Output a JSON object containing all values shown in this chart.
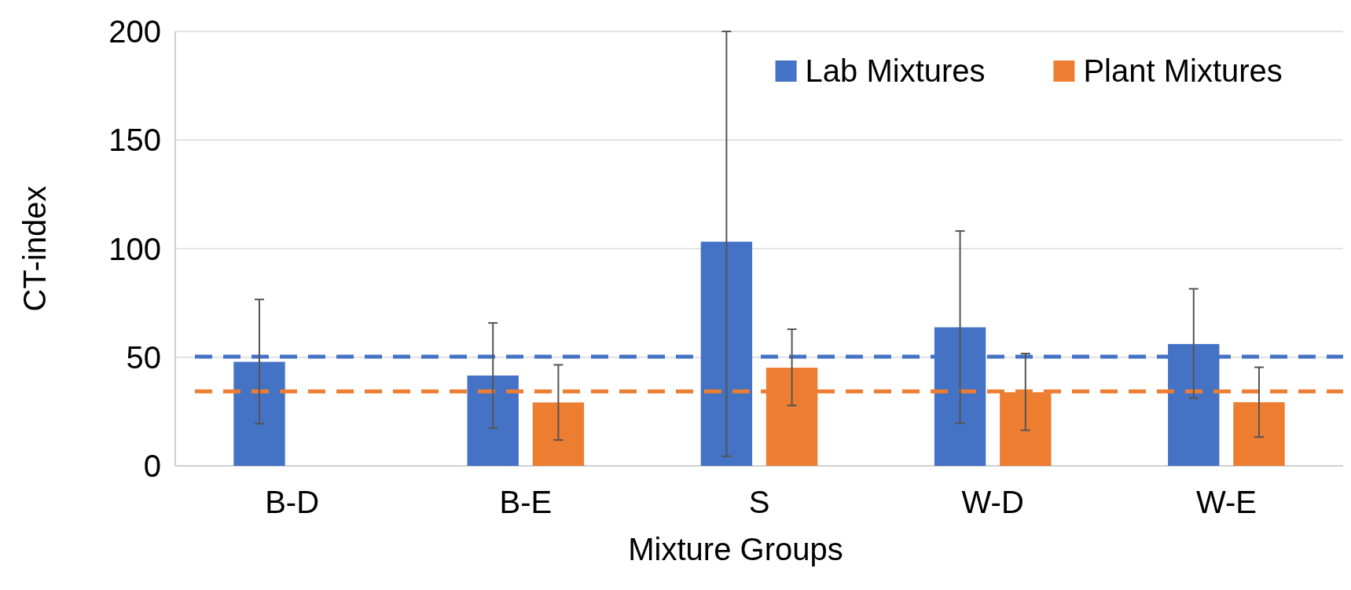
{
  "chart_data": {
    "type": "bar",
    "xlabel": "Mixture Groups",
    "ylabel": "CT-index",
    "categories": [
      "B-D",
      "B-E",
      "S",
      "W-D",
      "W-E"
    ],
    "series": [
      {
        "name": "Lab Mixtures",
        "color": "#4472c4",
        "values": [
          47.9,
          41.6,
          103.2,
          63.8,
          56.1
        ],
        "errors": [
          [
            19.4,
            76.6
          ],
          [
            17.4,
            65.8
          ],
          [
            4.4,
            200
          ],
          [
            19.6,
            108.1
          ],
          [
            31.2,
            81.5
          ]
        ]
      },
      {
        "name": "Plant Mixtures",
        "color": "#ed7d31",
        "values": [
          null,
          29.2,
          45.2,
          33.9,
          29.3
        ],
        "errors": [
          null,
          [
            11.9,
            46.5
          ],
          [
            27.8,
            62.9
          ],
          [
            16.4,
            51.7
          ],
          [
            13.3,
            45.4
          ]
        ]
      }
    ],
    "ref_lines": [
      {
        "axis": "y",
        "value": 50.3,
        "color": "#4472c4",
        "line_style": "dashed"
      },
      {
        "axis": "y",
        "value": 34.3,
        "color": "#ed7d31",
        "line_style": "dashed"
      }
    ],
    "ylim": [
      0,
      200
    ],
    "yticks": [
      0,
      50,
      100,
      150,
      200
    ],
    "grid": "y",
    "legend": "top right"
  }
}
